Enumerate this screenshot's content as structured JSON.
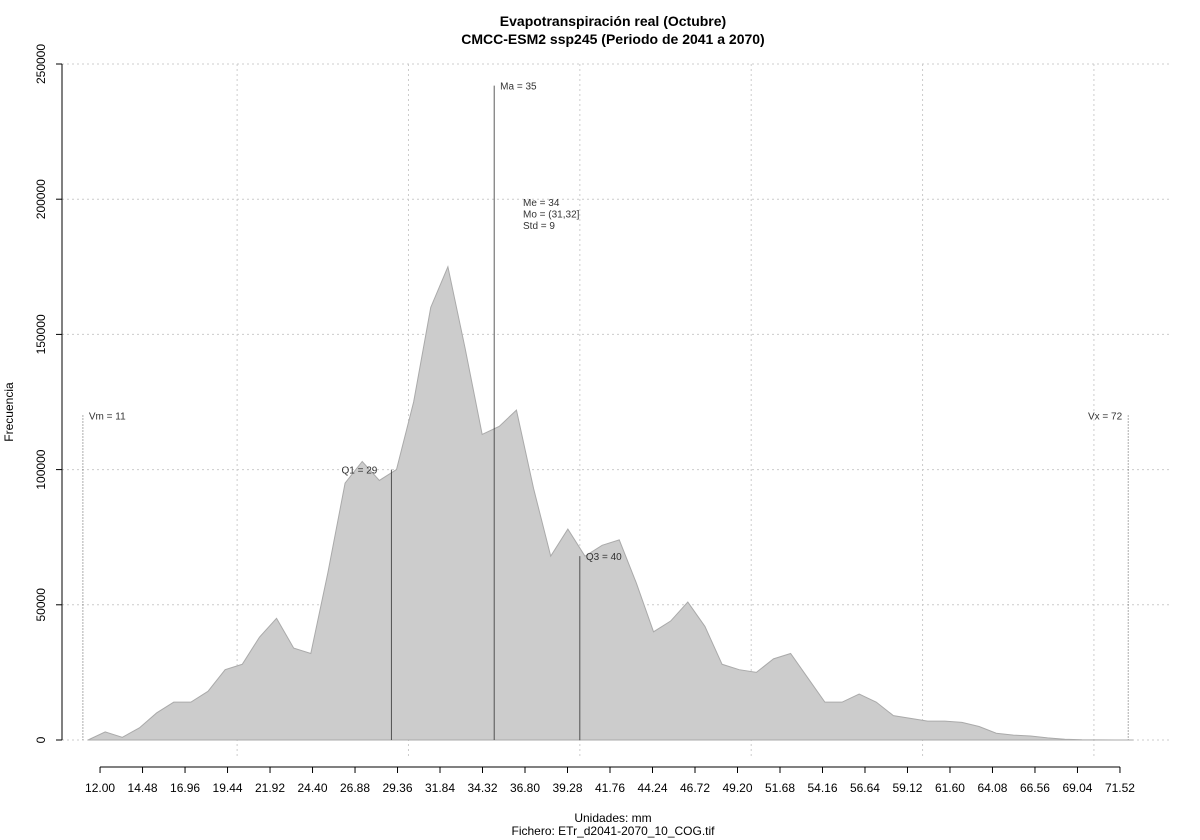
{
  "chart_data": {
    "type": "area",
    "title": "Evapotranspiración real (Octubre)",
    "subtitle": "CMCC-ESM2 ssp245 (Periodo de 2041 a 2070)",
    "y_label": "Frecuencia",
    "x_label": "Unidades: mm",
    "file_label": "Fichero: ETr_d2041-2070_10_COG.tif",
    "color": "#cccccc",
    "x": [
      11.3,
      12.3,
      13.3,
      14.3,
      15.3,
      16.3,
      17.3,
      18.3,
      19.3,
      20.3,
      21.3,
      22.3,
      23.3,
      24.3,
      25.3,
      26.3,
      27.3,
      28.3,
      29.3,
      30.3,
      31.3,
      32.3,
      33.3,
      34.3,
      35.3,
      36.3,
      37.3,
      38.3,
      39.3,
      40.3,
      41.3,
      42.3,
      43.3,
      44.3,
      45.3,
      46.3,
      47.3,
      48.3,
      49.3,
      50.3,
      51.3,
      52.3,
      53.3,
      54.3,
      55.3,
      56.3,
      57.3,
      58.3,
      59.3,
      60.3,
      61.3,
      62.3,
      63.3,
      64.3,
      65.3,
      66.3,
      67.3,
      68.3,
      69.3,
      70.3,
      71.3,
      72.3
    ],
    "values": [
      0,
      3000,
      1000,
      4500,
      10000,
      14000,
      14000,
      18000,
      26000,
      28000,
      38000,
      45000,
      34000,
      32000,
      62000,
      95000,
      103000,
      96000,
      100000,
      125000,
      160000,
      175000,
      145000,
      113000,
      116000,
      122000,
      93000,
      68000,
      78000,
      68000,
      72000,
      74000,
      58000,
      40000,
      44000,
      51000,
      42000,
      28000,
      26000,
      25000,
      30000,
      32000,
      23000,
      14000,
      14000,
      17000,
      14000,
      9000,
      8000,
      7000,
      7000,
      6500,
      5000,
      2500,
      1800,
      1500,
      800,
      300,
      100,
      50,
      0,
      0
    ],
    "xlim": [
      9.78,
      74.44
    ],
    "ylim": [
      0,
      250000
    ],
    "yticks": [
      0,
      50000,
      100000,
      150000,
      200000,
      250000
    ],
    "xticks": [
      {
        "value": 12,
        "label": "12.00"
      },
      {
        "value": 14.48,
        "label": "14.48"
      },
      {
        "value": 16.96,
        "label": "16.96"
      },
      {
        "value": 19.44,
        "label": "19.44"
      },
      {
        "value": 21.92,
        "label": "21.92"
      },
      {
        "value": 24.4,
        "label": "24.40"
      },
      {
        "value": 26.88,
        "label": "26.88"
      },
      {
        "value": 29.36,
        "label": "29.36"
      },
      {
        "value": 31.84,
        "label": "31.84"
      },
      {
        "value": 34.32,
        "label": "34.32"
      },
      {
        "value": 36.8,
        "label": "36.80"
      },
      {
        "value": 39.28,
        "label": "39.28"
      },
      {
        "value": 41.76,
        "label": "41.76"
      },
      {
        "value": 44.24,
        "label": "44.24"
      },
      {
        "value": 46.72,
        "label": "46.72"
      },
      {
        "value": 49.2,
        "label": "49.20"
      },
      {
        "value": 51.68,
        "label": "51.68"
      },
      {
        "value": 54.16,
        "label": "54.16"
      },
      {
        "value": 56.64,
        "label": "56.64"
      },
      {
        "value": 59.12,
        "label": "59.12"
      },
      {
        "value": 61.6,
        "label": "61.60"
      },
      {
        "value": 64.08,
        "label": "64.08"
      },
      {
        "value": 66.56,
        "label": "66.56"
      },
      {
        "value": 69.04,
        "label": "69.04"
      },
      {
        "value": 71.52,
        "label": "71.52"
      }
    ],
    "xgrid": [
      20,
      30,
      40,
      50,
      60,
      70
    ],
    "grid": true,
    "markers": [
      {
        "label": "Vm = 11",
        "x": 11,
        "y": 120000,
        "style": "dotted"
      },
      {
        "label": "Q1 = 29",
        "x": 29,
        "y": 100000,
        "style": "solid"
      },
      {
        "label": "Ma = 35",
        "x": 35,
        "y": 242000,
        "style": "solid"
      },
      {
        "label": "Q3 = 40",
        "x": 40,
        "y": 68000,
        "style": "solid"
      },
      {
        "label": "Vx = 72",
        "x": 72,
        "y": 120000,
        "style": "dotted"
      }
    ],
    "stats": [
      "Me = 34",
      "Mo = (31,32]",
      "Std = 9"
    ]
  }
}
